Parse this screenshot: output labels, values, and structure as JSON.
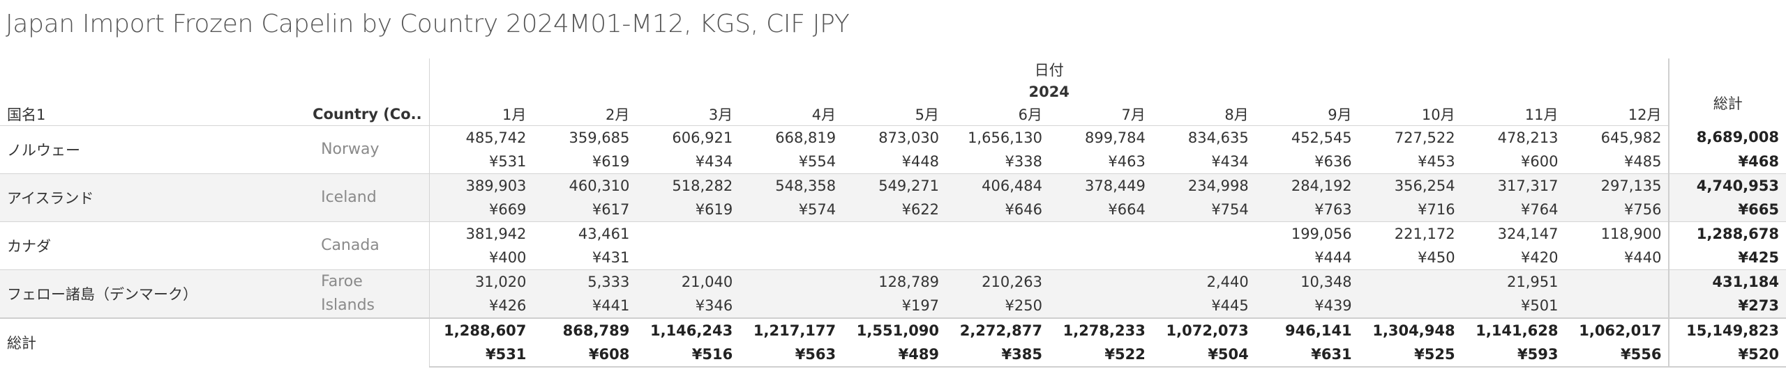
{
  "title": "Japan Import Frozen Capelin by Country 2024M01-M12, KGS, CIF JPY",
  "header": {
    "date_label": "日付",
    "year": "2024",
    "row_header_1": "国名1",
    "row_header_2": "Country (Co..",
    "total_label": "総計",
    "months": [
      "1月",
      "2月",
      "3月",
      "4月",
      "5月",
      "6月",
      "7月",
      "8月",
      "9月",
      "10月",
      "11月",
      "12月"
    ]
  },
  "rows": [
    {
      "name": "ノルウェー",
      "country_lines": [
        "Norway"
      ],
      "kgs": [
        "485,742",
        "359,685",
        "606,921",
        "668,819",
        "873,030",
        "1,656,130",
        "899,784",
        "834,635",
        "452,545",
        "727,522",
        "478,213",
        "645,982"
      ],
      "jpy": [
        "¥531",
        "¥619",
        "¥434",
        "¥554",
        "¥448",
        "¥338",
        "¥463",
        "¥434",
        "¥636",
        "¥453",
        "¥600",
        "¥485"
      ],
      "total_kgs": "8,689,008",
      "total_jpy": "¥468"
    },
    {
      "name": "アイスランド",
      "country_lines": [
        "Iceland"
      ],
      "kgs": [
        "389,903",
        "460,310",
        "518,282",
        "548,358",
        "549,271",
        "406,484",
        "378,449",
        "234,998",
        "284,192",
        "356,254",
        "317,317",
        "297,135"
      ],
      "jpy": [
        "¥669",
        "¥617",
        "¥619",
        "¥574",
        "¥622",
        "¥646",
        "¥664",
        "¥754",
        "¥763",
        "¥716",
        "¥764",
        "¥756"
      ],
      "total_kgs": "4,740,953",
      "total_jpy": "¥665"
    },
    {
      "name": "カナダ",
      "country_lines": [
        "Canada"
      ],
      "kgs": [
        "381,942",
        "43,461",
        "",
        "",
        "",
        "",
        "",
        "",
        "199,056",
        "221,172",
        "324,147",
        "118,900"
      ],
      "jpy": [
        "¥400",
        "¥431",
        "",
        "",
        "",
        "",
        "",
        "",
        "¥444",
        "¥450",
        "¥420",
        "¥440"
      ],
      "total_kgs": "1,288,678",
      "total_jpy": "¥425"
    },
    {
      "name": "フェロー諸島（デンマーク）",
      "country_lines": [
        "Faroe",
        "Islands"
      ],
      "kgs": [
        "31,020",
        "5,333",
        "21,040",
        "",
        "128,789",
        "210,263",
        "",
        "2,440",
        "10,348",
        "",
        "21,951",
        ""
      ],
      "jpy": [
        "¥426",
        "¥441",
        "¥346",
        "",
        "¥197",
        "¥250",
        "",
        "¥445",
        "¥439",
        "",
        "¥501",
        ""
      ],
      "total_kgs": "431,184",
      "total_jpy": "¥273"
    }
  ],
  "grand_total": {
    "label": "総計",
    "kgs": [
      "1,288,607",
      "868,789",
      "1,146,243",
      "1,217,177",
      "1,551,090",
      "2,272,877",
      "1,278,233",
      "1,072,073",
      "946,141",
      "1,304,948",
      "1,141,628",
      "1,062,017"
    ],
    "jpy": [
      "¥531",
      "¥608",
      "¥516",
      "¥563",
      "¥489",
      "¥385",
      "¥522",
      "¥504",
      "¥631",
      "¥525",
      "¥593",
      "¥556"
    ],
    "total_kgs": "15,149,823",
    "total_jpy": "¥520"
  }
}
